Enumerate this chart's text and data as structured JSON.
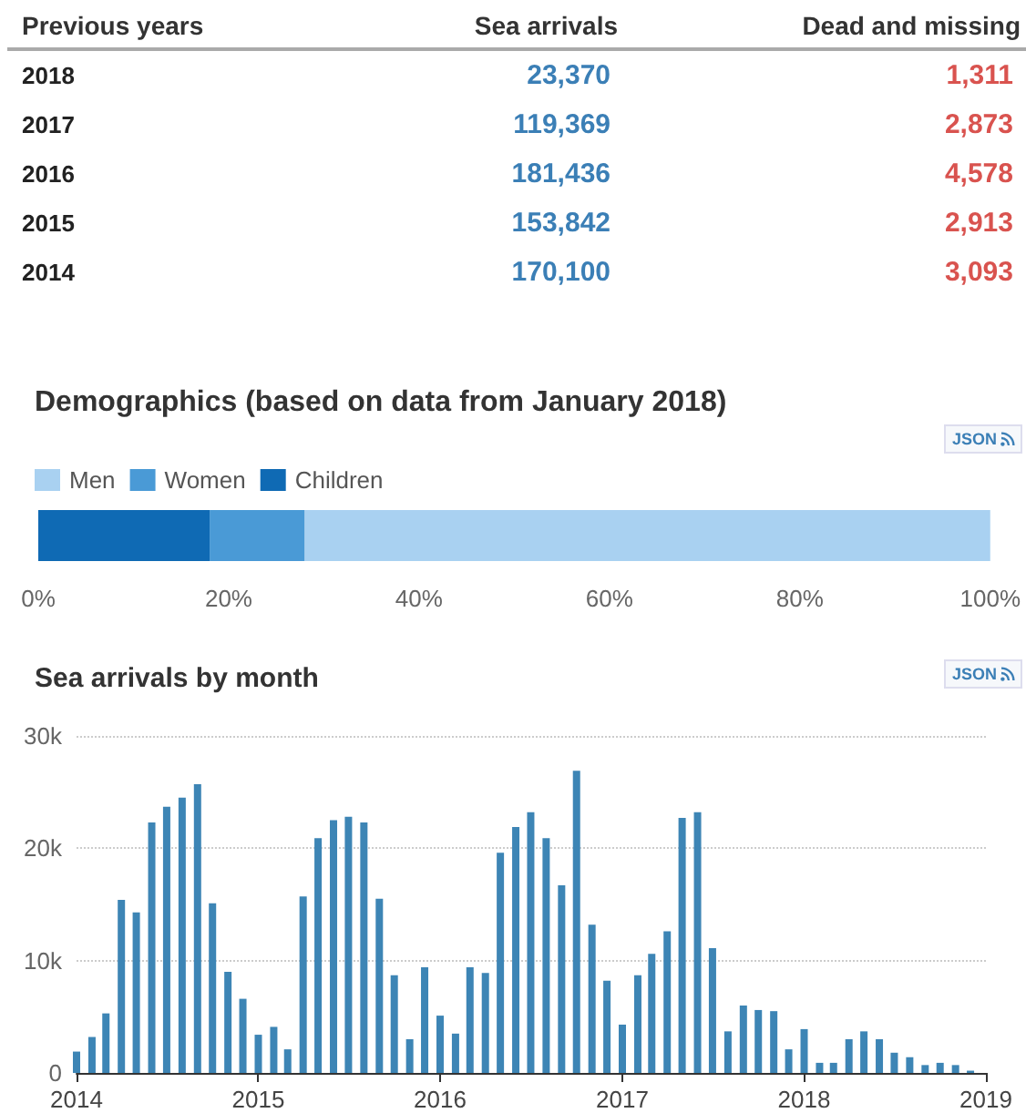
{
  "chart_data": [
    {
      "type": "heatmap",
      "ylabel": "Previous years",
      "categories": [
        "Sea arrivals",
        "Dead and missing"
      ],
      "y_categories": [
        "2018",
        "2017",
        "2016",
        "2015",
        "2014"
      ],
      "colors": [
        "#3b7fb6",
        "#d9534f"
      ],
      "cells": [
        [
          23370,
          1311
        ],
        [
          119369,
          2873
        ],
        [
          181436,
          4578
        ],
        [
          153842,
          2913
        ],
        [
          170100,
          3093
        ]
      ],
      "cell_labels": [
        [
          "23,370",
          "1,311"
        ],
        [
          "119,369",
          "2,873"
        ],
        [
          "181,436",
          "4,578"
        ],
        [
          "153,842",
          "2,913"
        ],
        [
          "170,100",
          "3,093"
        ]
      ]
    },
    {
      "type": "bar",
      "orientation": "horizontal",
      "stacked": true,
      "title": "Demographics (based on data from January 2018)",
      "annotations": [
        "JSON"
      ],
      "categories": [
        null
      ],
      "series": [
        {
          "name": "Children",
          "color": "#0f6ab4",
          "values": [
            18
          ]
        },
        {
          "name": "Women",
          "color": "#4a9ad6",
          "values": [
            10
          ]
        },
        {
          "name": "Men",
          "color": "#a9d1f1",
          "values": [
            72
          ]
        }
      ],
      "xlim": [
        0,
        100
      ],
      "xticks": [
        {
          "value": 0,
          "label": "0%"
        },
        {
          "value": 20,
          "label": "20%"
        },
        {
          "value": 40,
          "label": "40%"
        },
        {
          "value": 60,
          "label": "60%"
        },
        {
          "value": 80,
          "label": "80%"
        },
        {
          "value": 100,
          "label": "100%"
        }
      ],
      "legend": "top left",
      "grid": false
    },
    {
      "type": "bar",
      "title": "Sea arrivals by month",
      "annotations": [
        "JSON"
      ],
      "color": "#3d85b5",
      "x": [
        "2014-01",
        "2014-02",
        "2014-03",
        "2014-04",
        "2014-05",
        "2014-06",
        "2014-07",
        "2014-08",
        "2014-09",
        "2014-10",
        "2014-11",
        "2014-12",
        "2015-01",
        "2015-02",
        "2015-03",
        "2015-04",
        "2015-05",
        "2015-06",
        "2015-07",
        "2015-08",
        "2015-09",
        "2015-10",
        "2015-11",
        "2015-12",
        "2016-01",
        "2016-02",
        "2016-03",
        "2016-04",
        "2016-05",
        "2016-06",
        "2016-07",
        "2016-08",
        "2016-09",
        "2016-10",
        "2016-11",
        "2016-12",
        "2017-01",
        "2017-02",
        "2017-03",
        "2017-04",
        "2017-05",
        "2017-06",
        "2017-07",
        "2017-08",
        "2017-09",
        "2017-10",
        "2017-11",
        "2017-12",
        "2018-01",
        "2018-02",
        "2018-03",
        "2018-04",
        "2018-05",
        "2018-06",
        "2018-07",
        "2018-08",
        "2018-09",
        "2018-10",
        "2018-11",
        "2018-12"
      ],
      "values": [
        1900,
        3200,
        5300,
        15400,
        14300,
        22300,
        23700,
        24500,
        25700,
        15100,
        9000,
        6600,
        3400,
        4100,
        2100,
        15700,
        20900,
        22500,
        22800,
        22300,
        15500,
        8700,
        3000,
        9400,
        5100,
        3500,
        9400,
        8900,
        19600,
        21900,
        23200,
        20900,
        16700,
        26900,
        13200,
        8200,
        4300,
        8700,
        10600,
        12600,
        22700,
        23200,
        11100,
        3700,
        6000,
        5600,
        5500,
        2100,
        3900,
        900,
        900,
        3000,
        3700,
        3000,
        1800,
        1400,
        700,
        900,
        700,
        200
      ],
      "xlim": [
        "2014-01",
        "2019-01"
      ],
      "xticks": [
        "2014",
        "2015",
        "2016",
        "2017",
        "2018",
        "2019"
      ],
      "ylim": [
        0,
        30000
      ],
      "yticks": [
        0,
        {
          "value": 10000,
          "label": "10k"
        },
        {
          "value": 20000,
          "label": "20k"
        },
        {
          "value": 30000,
          "label": "30k"
        }
      ],
      "grid": "y"
    }
  ]
}
